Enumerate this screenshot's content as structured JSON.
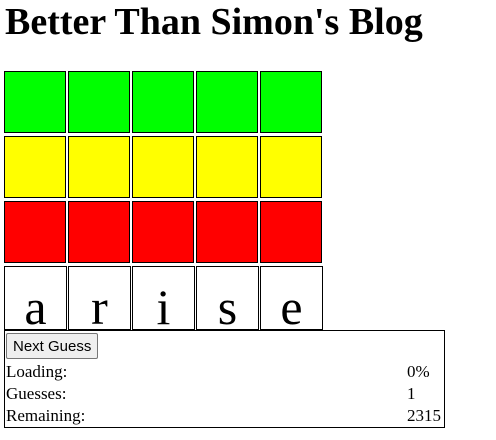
{
  "header": {
    "title": "Better Than Simon's Blog"
  },
  "colors": {
    "green": "#00ff00",
    "yellow": "#ffff00",
    "red": "#ff0000"
  },
  "color_rows": [
    {
      "name": "green",
      "color": "#00ff00"
    },
    {
      "name": "yellow",
      "color": "#ffff00"
    },
    {
      "name": "red",
      "color": "#ff0000"
    }
  ],
  "guess": {
    "letters": [
      "a",
      "r",
      "i",
      "s",
      "e"
    ]
  },
  "controls": {
    "next_label": "Next Guess"
  },
  "stats": {
    "loading_label": "Loading:",
    "loading_value": "0%",
    "guesses_label": "Guesses:",
    "guesses_value": "1",
    "remaining_label": "Remaining:",
    "remaining_value": "2315"
  }
}
